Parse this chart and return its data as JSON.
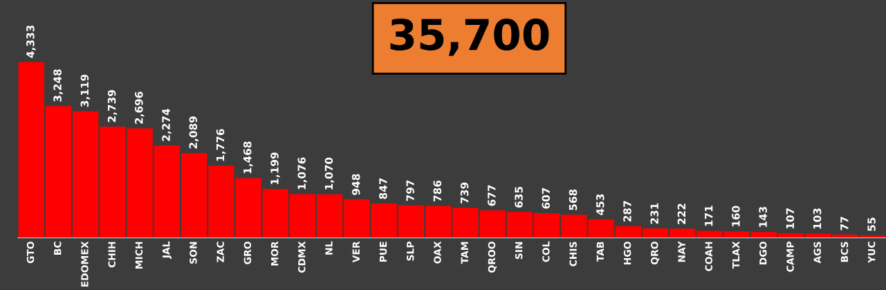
{
  "chart_data": {
    "type": "bar",
    "categories": [
      "GTO",
      "BC",
      "EDOMEX",
      "CHIH",
      "MICH",
      "JAL",
      "SON",
      "ZAC",
      "GRO",
      "MOR",
      "CDMX",
      "NL",
      "VER",
      "PUE",
      "SLP",
      "OAX",
      "TAM",
      "QROO",
      "SIN",
      "COL",
      "CHIS",
      "TAB",
      "HGO",
      "QRO",
      "NAY",
      "COAH",
      "TLAX",
      "DGO",
      "CAMP",
      "AGS",
      "BCS",
      "YUC"
    ],
    "values": [
      4333,
      3248,
      3119,
      2739,
      2696,
      2274,
      2089,
      1776,
      1468,
      1199,
      1076,
      1070,
      948,
      847,
      797,
      786,
      739,
      677,
      635,
      607,
      568,
      453,
      287,
      231,
      222,
      171,
      160,
      143,
      107,
      103,
      77,
      55
    ],
    "color": "#ff0000",
    "value_labels": [
      "4,333",
      "3,248",
      "3,119",
      "2,739",
      "2,696",
      "2,274",
      "2,089",
      "1,776",
      "1,468",
      "1,199",
      "1,076",
      "1,070",
      "948",
      "847",
      "797",
      "786",
      "739",
      "677",
      "635",
      "607",
      "568",
      "453",
      "287",
      "231",
      "222",
      "171",
      "160",
      "143",
      "107",
      "103",
      "77",
      "55"
    ],
    "tick_labels": "x",
    "grid": false,
    "annotations": [
      "35,700"
    ]
  }
}
